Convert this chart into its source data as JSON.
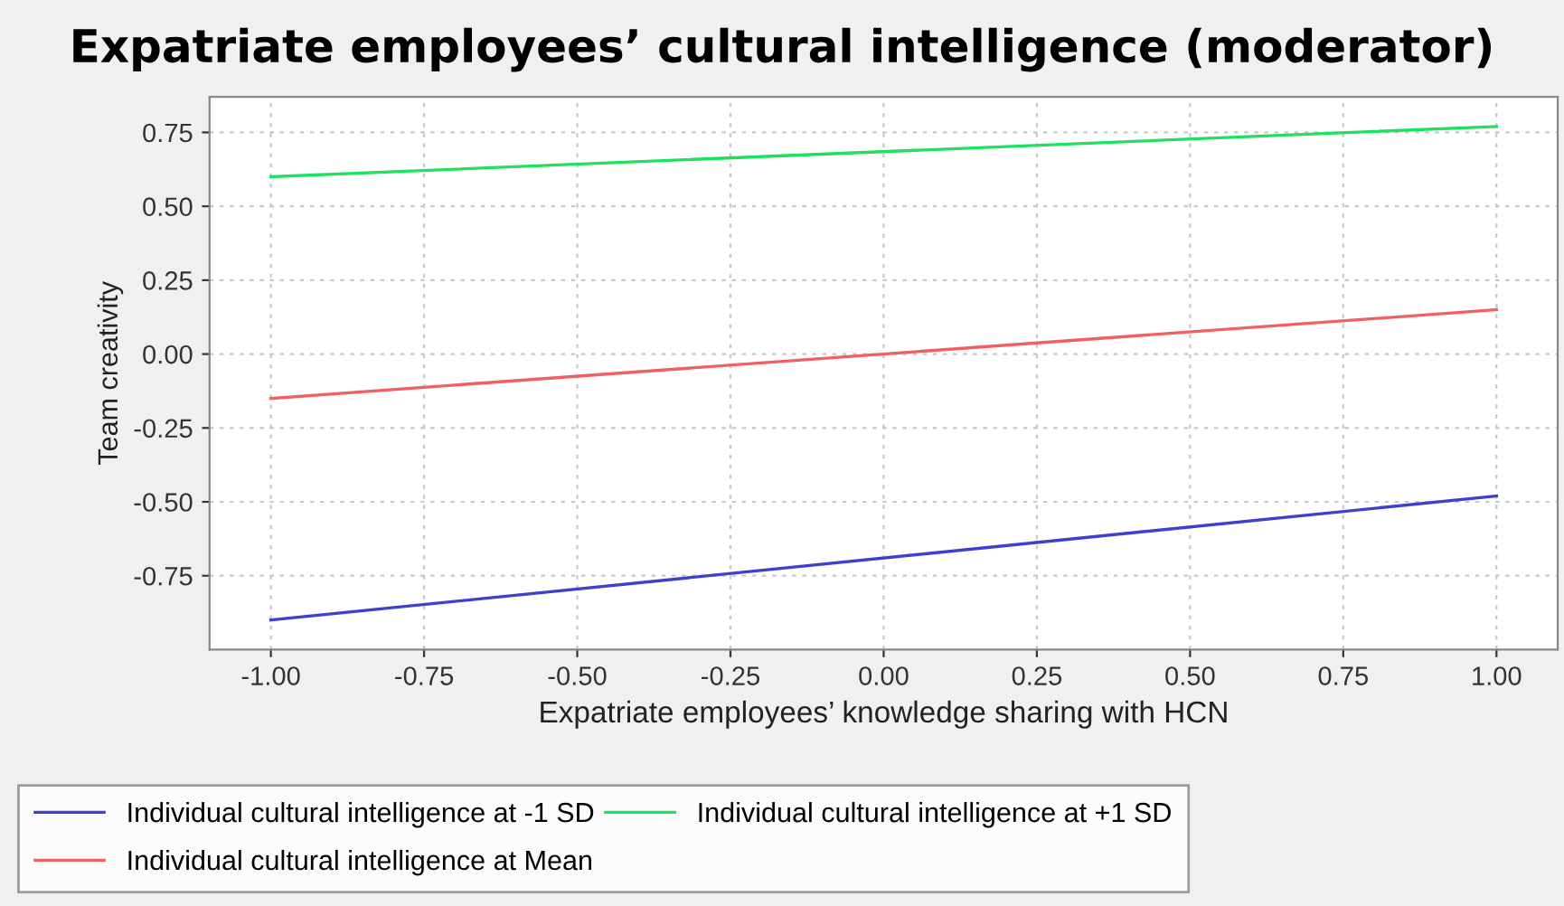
{
  "chart_data": {
    "type": "line",
    "title": "Expatriate employees’ cultural intelligence (moderator)",
    "xlabel": "Expatriate employees’ knowledge sharing with HCN",
    "ylabel": "Team creativity",
    "x": [
      -1.0,
      1.0
    ],
    "series": [
      {
        "name": "Individual cultural intelligence at -1 SD",
        "color": "#4040d0",
        "values": [
          -0.9,
          -0.48
        ]
      },
      {
        "name": "Individual cultural intelligence at Mean",
        "color": "#f06060",
        "values": [
          -0.15,
          0.15
        ]
      },
      {
        "name": "Individual cultural intelligence at +1 SD",
        "color": "#20e060",
        "values": [
          0.6,
          0.77
        ]
      }
    ],
    "xlim": [
      -1.1,
      1.1
    ],
    "ylim": [
      -1.0,
      0.87
    ],
    "xticks": [
      {
        "value": -1,
        "label": "-1.00"
      },
      {
        "value": -0.75,
        "label": "-0.75"
      },
      {
        "value": -0.5,
        "label": "-0.50"
      },
      {
        "value": -0.25,
        "label": "-0.25"
      },
      {
        "value": 0,
        "label": "0.00"
      },
      {
        "value": 0.25,
        "label": "0.25"
      },
      {
        "value": 0.5,
        "label": "0.50"
      },
      {
        "value": 0.75,
        "label": "0.75"
      },
      {
        "value": 1,
        "label": "1.00"
      }
    ],
    "yticks": [
      {
        "value": -0.75,
        "label": "-0.75"
      },
      {
        "value": -0.5,
        "label": "-0.50"
      },
      {
        "value": -0.25,
        "label": "-0.25"
      },
      {
        "value": 0,
        "label": "0.00"
      },
      {
        "value": 0.25,
        "label": "0.25"
      },
      {
        "value": 0.5,
        "label": "0.50"
      },
      {
        "value": 0.75,
        "label": "0.75"
      }
    ],
    "grid": true,
    "legend": "bottom",
    "line_style": "solid",
    "marker": "none"
  }
}
